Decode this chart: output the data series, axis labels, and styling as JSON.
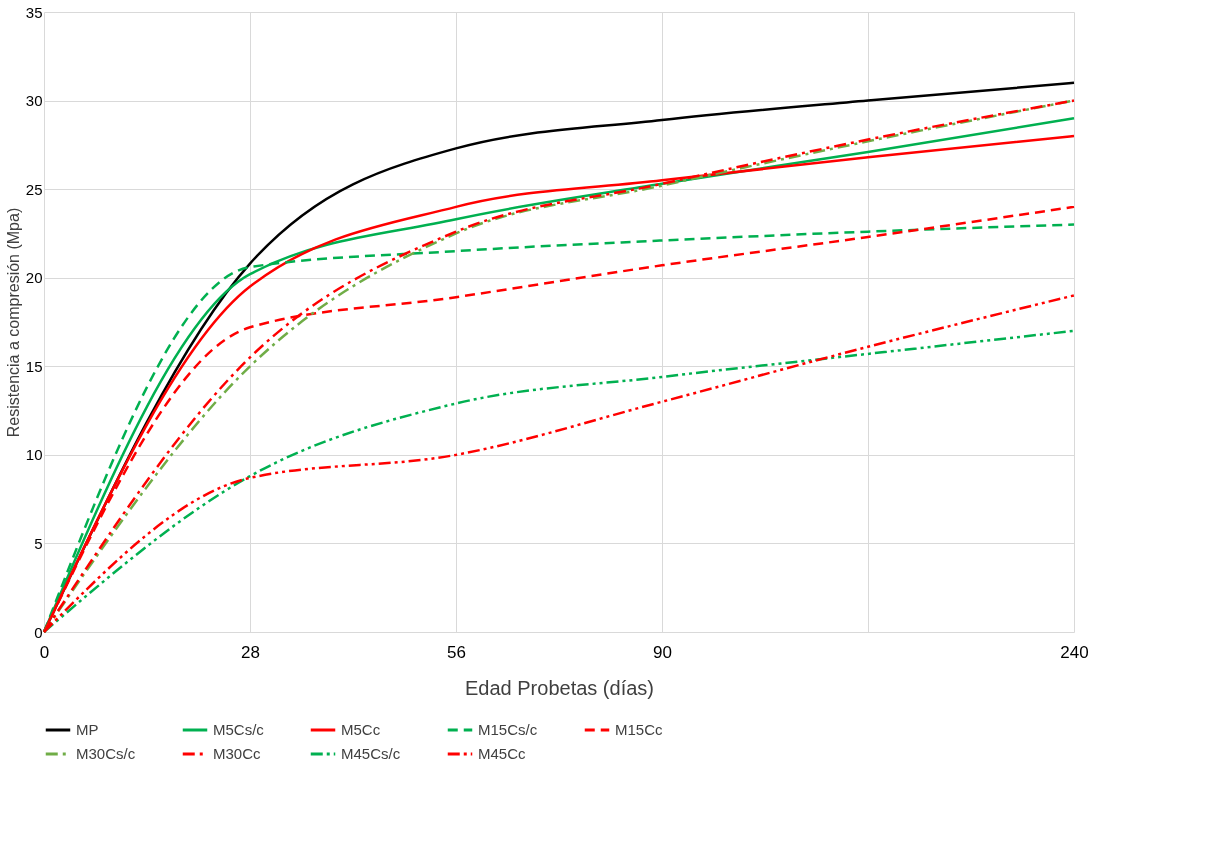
{
  "chart_data": {
    "type": "line",
    "xlabel": "Edad Probetas (días)",
    "ylabel": "Resistencia a compresión (Mpa)",
    "categories": [
      "0",
      "28",
      "56",
      "90",
      null,
      "240"
    ],
    "ylim": [
      0,
      35
    ],
    "yticks": [
      0,
      5,
      10,
      15,
      20,
      25,
      30,
      35
    ],
    "grid": true,
    "legend": "bottom",
    "marker": "none",
    "series": [
      {
        "name": "MP",
        "color": "#000000",
        "line_style": "solid",
        "values": [
          0,
          20.8,
          27.3,
          28.9,
          30,
          31
        ]
      },
      {
        "name": "M5Cs/c",
        "color": "#00b050",
        "line_style": "solid",
        "values": [
          0,
          20.2,
          23.3,
          25.3,
          27.1,
          29
        ]
      },
      {
        "name": "M5Cc",
        "color": "#ff0000",
        "line_style": "solid",
        "values": [
          0,
          19.5,
          24,
          25.5,
          26.8,
          28
        ]
      },
      {
        "name": "M15Cs/c",
        "color": "#00b050",
        "line_style": "dashed",
        "values": [
          0,
          20.6,
          21.5,
          22.1,
          22.6,
          23
        ]
      },
      {
        "name": "M15Cc",
        "color": "#ff0000",
        "line_style": "dashed",
        "values": [
          0,
          17.2,
          18.9,
          20.7,
          22.3,
          24
        ]
      },
      {
        "name": "M30Cs/c",
        "color": "#70ad47",
        "line_style": "dashdot",
        "values": [
          0,
          15,
          22.5,
          25.2,
          27.7,
          30
        ]
      },
      {
        "name": "M30Cc",
        "color": "#ff0000",
        "line_style": "dashdot",
        "values": [
          0,
          15.5,
          22.6,
          25.3,
          27.8,
          30
        ]
      },
      {
        "name": "M45Cs/c",
        "color": "#00b050",
        "line_style": "dashdotdot",
        "values": [
          0,
          8.8,
          12.9,
          14.4,
          15.7,
          17
        ]
      },
      {
        "name": "M45Cc",
        "color": "#ff0000",
        "line_style": "dashdotdot",
        "values": [
          0,
          8.7,
          10,
          13,
          16.1,
          19
        ]
      }
    ]
  }
}
